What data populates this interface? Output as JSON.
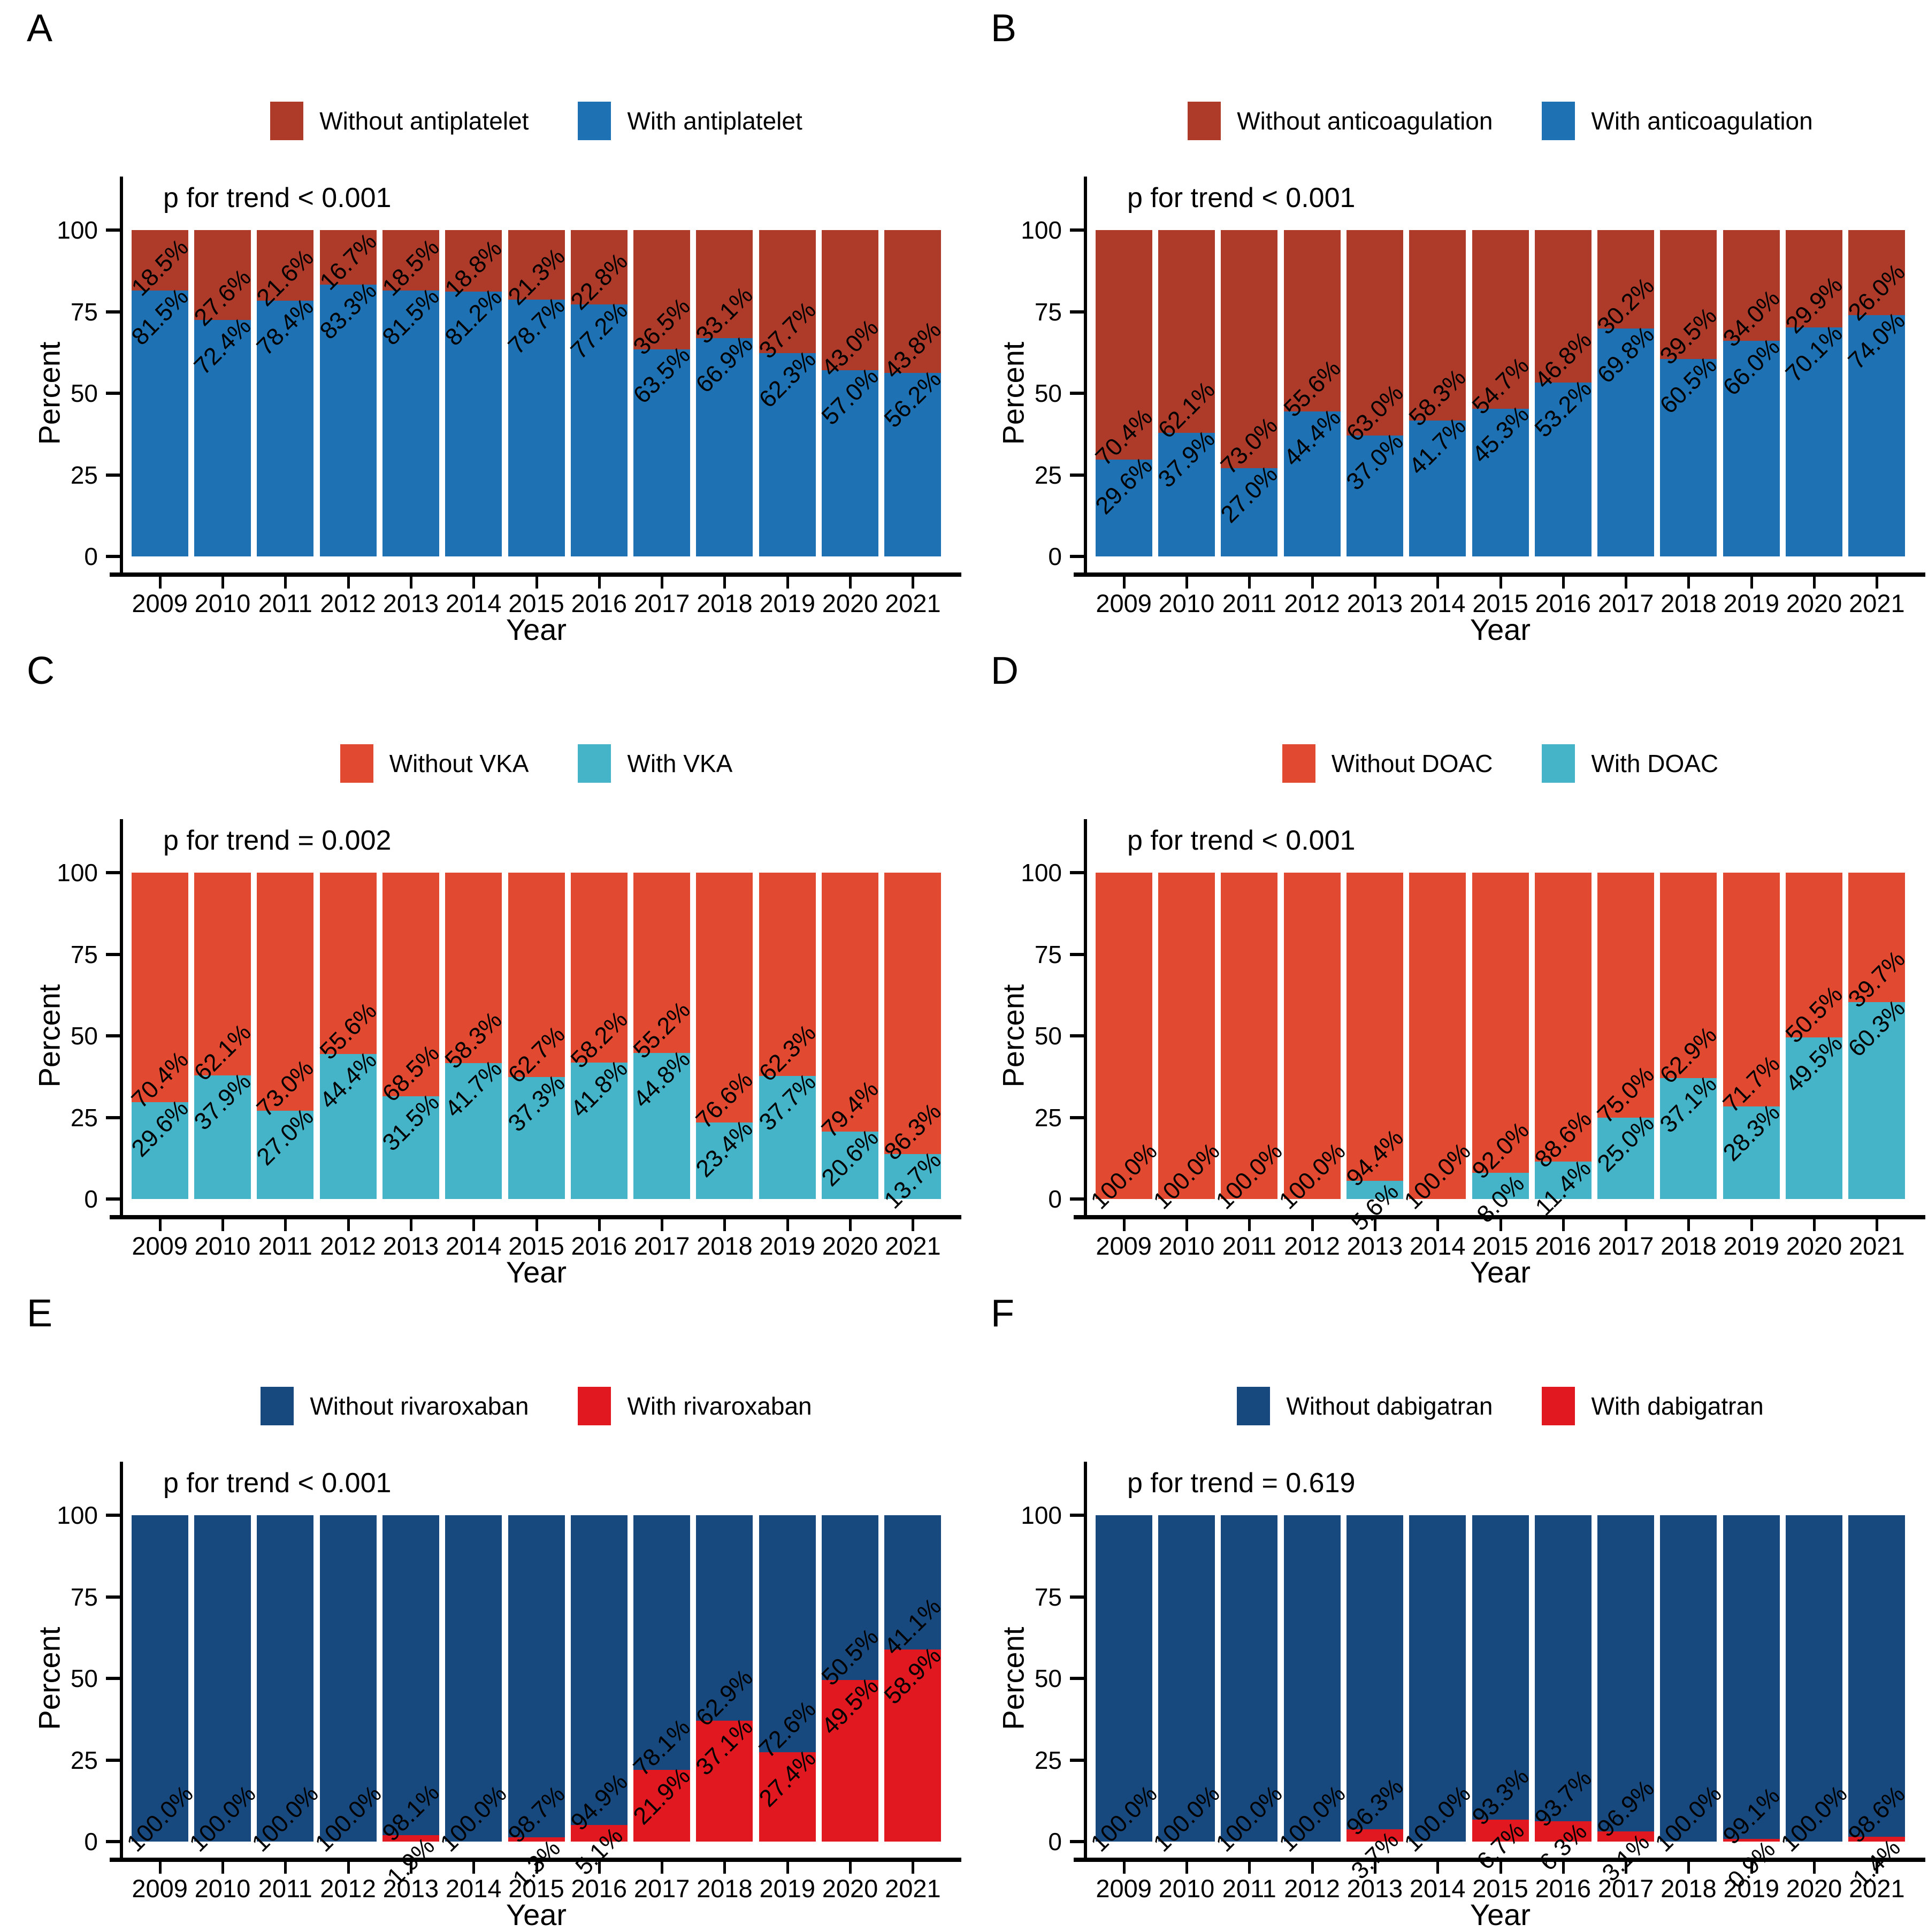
{
  "chart_data": [
    {
      "panel": "A",
      "type": "bar",
      "stacked": true,
      "legend_position": "top",
      "bar_label_rotation": 45,
      "p_label": "p for trend < 0.001",
      "legend": [
        {
          "label": "Without antiplatelet",
          "color": "#AE3B2A"
        },
        {
          "label": "With antiplatelet",
          "color": "#1E71B2"
        }
      ],
      "xlabel": "Year",
      "ylabel": "Percent",
      "ylim": [
        0,
        100
      ],
      "yticks": [
        0,
        25,
        50,
        75,
        100
      ],
      "categories": [
        "2009",
        "2010",
        "2011",
        "2012",
        "2013",
        "2014",
        "2015",
        "2016",
        "2017",
        "2018",
        "2019",
        "2020",
        "2021"
      ],
      "series": [
        {
          "name": "With antiplatelet",
          "color": "#1E71B2",
          "values": [
            81.5,
            72.4,
            78.4,
            83.3,
            81.5,
            81.2,
            78.7,
            77.2,
            63.5,
            66.9,
            62.3,
            57.0,
            56.2
          ],
          "labels": [
            "81.5%",
            "72.4%",
            "78.4%",
            "83.3%",
            "81.5%",
            "81.2%",
            "78.7%",
            "77.2%",
            "63.5%",
            "66.9%",
            "62.3%",
            "57.0%",
            "56.2%"
          ]
        },
        {
          "name": "Without antiplatelet",
          "color": "#AE3B2A",
          "values": [
            18.5,
            27.6,
            21.6,
            16.7,
            18.5,
            18.8,
            21.3,
            22.8,
            36.5,
            33.1,
            37.7,
            43.0,
            43.8
          ],
          "labels": [
            "18.5%",
            "27.6%",
            "21.6%",
            "16.7%",
            "18.5%",
            "18.8%",
            "21.3%",
            "22.8%",
            "36.5%",
            "33.1%",
            "37.7%",
            "43.0%",
            "43.8%"
          ]
        }
      ]
    },
    {
      "panel": "B",
      "type": "bar",
      "stacked": true,
      "legend_position": "top",
      "bar_label_rotation": 45,
      "p_label": "p for trend < 0.001",
      "legend": [
        {
          "label": "Without anticoagulation",
          "color": "#AE3B2A"
        },
        {
          "label": "With anticoagulation",
          "color": "#1E71B2"
        }
      ],
      "xlabel": "Year",
      "ylabel": "Percent",
      "ylim": [
        0,
        100
      ],
      "yticks": [
        0,
        25,
        50,
        75,
        100
      ],
      "categories": [
        "2009",
        "2010",
        "2011",
        "2012",
        "2013",
        "2014",
        "2015",
        "2016",
        "2017",
        "2018",
        "2019",
        "2020",
        "2021"
      ],
      "series": [
        {
          "name": "With anticoagulation",
          "color": "#1E71B2",
          "values": [
            29.6,
            37.9,
            27.0,
            44.4,
            37.0,
            41.7,
            45.3,
            53.2,
            69.8,
            60.5,
            66.0,
            70.1,
            74.0
          ],
          "labels": [
            "29.6%",
            "37.9%",
            "27.0%",
            "44.4%",
            "37.0%",
            "41.7%",
            "45.3%",
            "53.2%",
            "69.8%",
            "60.5%",
            "66.0%",
            "70.1%",
            "74.0%"
          ]
        },
        {
          "name": "Without anticoagulation",
          "color": "#AE3B2A",
          "values": [
            70.4,
            62.1,
            73.0,
            55.6,
            63.0,
            58.3,
            54.7,
            46.8,
            30.2,
            39.5,
            34.0,
            29.9,
            26.0
          ],
          "labels": [
            "70.4%",
            "62.1%",
            "73.0%",
            "55.6%",
            "63.0%",
            "58.3%",
            "54.7%",
            "46.8%",
            "30.2%",
            "39.5%",
            "34.0%",
            "29.9%",
            "26.0%"
          ]
        }
      ]
    },
    {
      "panel": "C",
      "type": "bar",
      "stacked": true,
      "legend_position": "top",
      "bar_label_rotation": 45,
      "p_label": "p for trend = 0.002",
      "legend": [
        {
          "label": "Without VKA",
          "color": "#E14A31"
        },
        {
          "label": "With VKA",
          "color": "#46B4C8"
        }
      ],
      "xlabel": "Year",
      "ylabel": "Percent",
      "ylim": [
        0,
        100
      ],
      "yticks": [
        0,
        25,
        50,
        75,
        100
      ],
      "categories": [
        "2009",
        "2010",
        "2011",
        "2012",
        "2013",
        "2014",
        "2015",
        "2016",
        "2017",
        "2018",
        "2019",
        "2020",
        "2021"
      ],
      "series": [
        {
          "name": "With VKA",
          "color": "#46B4C8",
          "values": [
            29.6,
            37.9,
            27.0,
            44.4,
            31.5,
            41.7,
            37.3,
            41.8,
            44.8,
            23.4,
            37.7,
            20.6,
            13.7
          ],
          "labels": [
            "29.6%",
            "37.9%",
            "27.0%",
            "44.4%",
            "31.5%",
            "41.7%",
            "37.3%",
            "41.8%",
            "44.8%",
            "23.4%",
            "37.7%",
            "20.6%",
            "13.7%"
          ]
        },
        {
          "name": "Without VKA",
          "color": "#E14A31",
          "values": [
            70.4,
            62.1,
            73.0,
            55.6,
            68.5,
            58.3,
            62.7,
            58.2,
            55.2,
            76.6,
            62.3,
            79.4,
            86.3
          ],
          "labels": [
            "70.4%",
            "62.1%",
            "73.0%",
            "55.6%",
            "68.5%",
            "58.3%",
            "62.7%",
            "58.2%",
            "55.2%",
            "76.6%",
            "62.3%",
            "79.4%",
            "86.3%"
          ]
        }
      ]
    },
    {
      "panel": "D",
      "type": "bar",
      "stacked": true,
      "legend_position": "top",
      "bar_label_rotation": 45,
      "p_label": "p for trend < 0.001",
      "legend": [
        {
          "label": "Without DOAC",
          "color": "#E14A31"
        },
        {
          "label": "With DOAC",
          "color": "#46B4C8"
        }
      ],
      "xlabel": "Year",
      "ylabel": "Percent",
      "ylim": [
        0,
        100
      ],
      "yticks": [
        0,
        25,
        50,
        75,
        100
      ],
      "categories": [
        "2009",
        "2010",
        "2011",
        "2012",
        "2013",
        "2014",
        "2015",
        "2016",
        "2017",
        "2018",
        "2019",
        "2020",
        "2021"
      ],
      "series": [
        {
          "name": "With DOAC",
          "color": "#46B4C8",
          "values": [
            0,
            0,
            0,
            0,
            5.6,
            0,
            8.0,
            11.4,
            25.0,
            37.1,
            28.3,
            49.5,
            60.3
          ],
          "labels": [
            "",
            "",
            "",
            "",
            "5.6%",
            "",
            "8.0%",
            "11.4%",
            "25.0%",
            "37.1%",
            "28.3%",
            "49.5%",
            "60.3%"
          ]
        },
        {
          "name": "Without DOAC",
          "color": "#E14A31",
          "values": [
            100.0,
            100.0,
            100.0,
            100.0,
            94.4,
            100.0,
            92.0,
            88.6,
            75.0,
            62.9,
            71.7,
            50.5,
            39.7
          ],
          "labels": [
            "100.0%",
            "100.0%",
            "100.0%",
            "100.0%",
            "94.4%",
            "100.0%",
            "92.0%",
            "88.6%",
            "75.0%",
            "62.9%",
            "71.7%",
            "50.5%",
            "39.7%"
          ]
        }
      ]
    },
    {
      "panel": "E",
      "type": "bar",
      "stacked": true,
      "legend_position": "top",
      "bar_label_rotation": 45,
      "p_label": "p for trend < 0.001",
      "legend": [
        {
          "label": "Without rivaroxaban",
          "color": "#17497F"
        },
        {
          "label": "With rivaroxaban",
          "color": "#E1181F"
        }
      ],
      "xlabel": "Year",
      "ylabel": "Percent",
      "ylim": [
        0,
        100
      ],
      "yticks": [
        0,
        25,
        50,
        75,
        100
      ],
      "categories": [
        "2009",
        "2010",
        "2011",
        "2012",
        "2013",
        "2014",
        "2015",
        "2016",
        "2017",
        "2018",
        "2019",
        "2020",
        "2021"
      ],
      "series": [
        {
          "name": "With rivaroxaban",
          "color": "#E1181F",
          "values": [
            0,
            0,
            0,
            0,
            1.9,
            0,
            1.3,
            5.1,
            21.9,
            37.1,
            27.4,
            49.5,
            58.9
          ],
          "labels": [
            "",
            "",
            "",
            "",
            "1.9%",
            "",
            "1.3%",
            "5.1%",
            "21.9%",
            "37.1%",
            "27.4%",
            "49.5%",
            "58.9%"
          ]
        },
        {
          "name": "Without rivaroxaban",
          "color": "#17497F",
          "values": [
            100.0,
            100.0,
            100.0,
            100.0,
            98.1,
            100.0,
            98.7,
            94.9,
            78.1,
            62.9,
            72.6,
            50.5,
            41.1
          ],
          "labels": [
            "100.0%",
            "100.0%",
            "100.0%",
            "100.0%",
            "98.1%",
            "100.0%",
            "98.7%",
            "94.9%",
            "78.1%",
            "62.9%",
            "72.6%",
            "50.5%",
            "41.1%"
          ]
        }
      ]
    },
    {
      "panel": "F",
      "type": "bar",
      "stacked": true,
      "legend_position": "top",
      "bar_label_rotation": 45,
      "p_label": "p for trend = 0.619",
      "legend": [
        {
          "label": "Without dabigatran",
          "color": "#17497F"
        },
        {
          "label": "With dabigatran",
          "color": "#E1181F"
        }
      ],
      "xlabel": "Year",
      "ylabel": "Percent",
      "ylim": [
        0,
        100
      ],
      "yticks": [
        0,
        25,
        50,
        75,
        100
      ],
      "categories": [
        "2009",
        "2010",
        "2011",
        "2012",
        "2013",
        "2014",
        "2015",
        "2016",
        "2017",
        "2018",
        "2019",
        "2020",
        "2021"
      ],
      "series": [
        {
          "name": "With dabigatran",
          "color": "#E1181F",
          "values": [
            0,
            0,
            0,
            0,
            3.7,
            0,
            6.7,
            6.3,
            3.1,
            0,
            0.9,
            0,
            1.4
          ],
          "labels": [
            "",
            "",
            "",
            "",
            "3.7%",
            "",
            "6.7%",
            "6.3%",
            "3.1%",
            "",
            "0.9%",
            "",
            "1.4%"
          ]
        },
        {
          "name": "Without dabigatran",
          "color": "#17497F",
          "values": [
            100.0,
            100.0,
            100.0,
            100.0,
            96.3,
            100.0,
            93.3,
            93.7,
            96.9,
            100.0,
            99.1,
            100.0,
            98.6
          ],
          "labels": [
            "100.0%",
            "100.0%",
            "100.0%",
            "100.0%",
            "96.3%",
            "100.0%",
            "93.3%",
            "93.7%",
            "96.9%",
            "100.0%",
            "99.1%",
            "100.0%",
            "98.6%"
          ]
        }
      ]
    }
  ]
}
